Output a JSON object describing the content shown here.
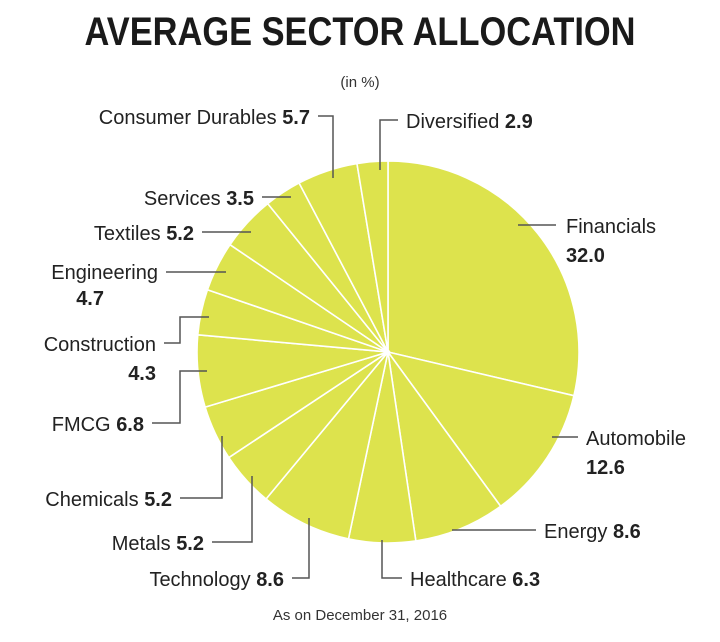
{
  "chart_data": {
    "type": "pie",
    "title": "AVERAGE SECTOR ALLOCATION",
    "subtitle": "(in %)",
    "footnote": "As on December 31, 2016",
    "slice_color": "#dde34d",
    "border_color": "#ffffff",
    "leader_color": "#555555",
    "slices": [
      {
        "label": "Financials",
        "value": 32.0
      },
      {
        "label": "Automobile",
        "value": 12.6
      },
      {
        "label": "Energy",
        "value": 8.6
      },
      {
        "label": "Healthcare",
        "value": 6.3
      },
      {
        "label": "Technology",
        "value": 8.6
      },
      {
        "label": "Metals",
        "value": 5.2
      },
      {
        "label": "Chemicals",
        "value": 5.2
      },
      {
        "label": "FMCG",
        "value": 6.8
      },
      {
        "label": "Construction",
        "value": 4.3
      },
      {
        "label": "Engineering",
        "value": 4.7
      },
      {
        "label": "Textiles",
        "value": 5.2
      },
      {
        "label": "Services",
        "value": 3.5
      },
      {
        "label": "Consumer Durables",
        "value": 5.7
      },
      {
        "label": "Diversified",
        "value": 2.9
      }
    ]
  }
}
